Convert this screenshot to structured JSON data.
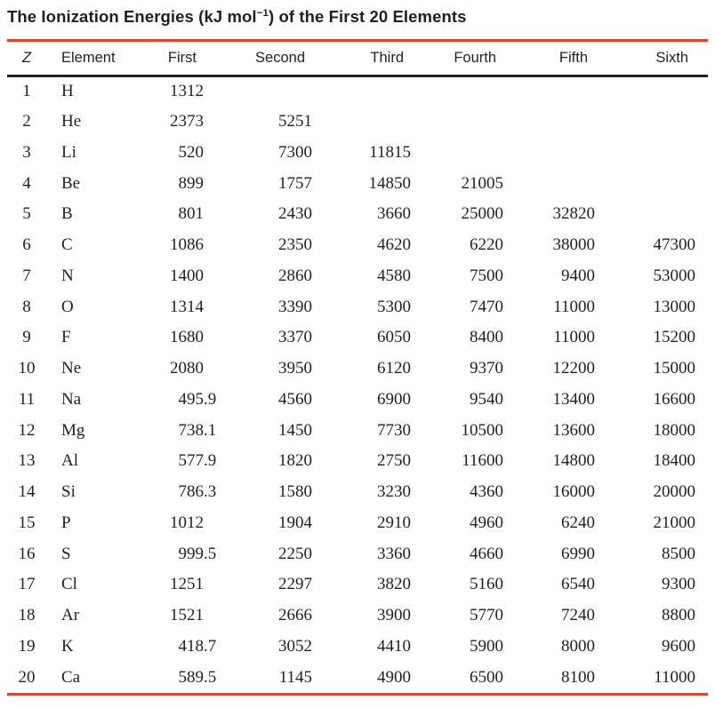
{
  "title": {
    "pre": "The Ionization Energies (kJ mol",
    "sup": "−1",
    "post": ") of the First 20 Elements"
  },
  "colors": {
    "accent_rule": "#d6492f",
    "header_rule": "#231f20",
    "text": "#231f20"
  },
  "table": {
    "columns": [
      "Z",
      "Element",
      "First",
      "Second",
      "Third",
      "Fourth",
      "Fifth",
      "Sixth"
    ],
    "rows": [
      [
        "1",
        "H",
        "1312",
        "",
        "",
        "",
        "",
        ""
      ],
      [
        "2",
        "He",
        "2373",
        "5251",
        "",
        "",
        "",
        ""
      ],
      [
        "3",
        "Li",
        "520",
        "7300",
        "11815",
        "",
        "",
        ""
      ],
      [
        "4",
        "Be",
        "899",
        "1757",
        "14850",
        "21005",
        "",
        ""
      ],
      [
        "5",
        "B",
        "801",
        "2430",
        "3660",
        "25000",
        "32820",
        ""
      ],
      [
        "6",
        "C",
        "1086",
        "2350",
        "4620",
        "6220",
        "38000",
        "47300"
      ],
      [
        "7",
        "N",
        "1400",
        "2860",
        "4580",
        "7500",
        "9400",
        "53000"
      ],
      [
        "8",
        "O",
        "1314",
        "3390",
        "5300",
        "7470",
        "11000",
        "13000"
      ],
      [
        "9",
        "F",
        "1680",
        "3370",
        "6050",
        "8400",
        "11000",
        "15200"
      ],
      [
        "10",
        "Ne",
        "2080",
        "3950",
        "6120",
        "9370",
        "12200",
        "15000"
      ],
      [
        "11",
        "Na",
        "495.9",
        "4560",
        "6900",
        "9540",
        "13400",
        "16600"
      ],
      [
        "12",
        "Mg",
        "738.1",
        "1450",
        "7730",
        "10500",
        "13600",
        "18000"
      ],
      [
        "13",
        "Al",
        "577.9",
        "1820",
        "2750",
        "11600",
        "14800",
        "18400"
      ],
      [
        "14",
        "Si",
        "786.3",
        "1580",
        "3230",
        "4360",
        "16000",
        "20000"
      ],
      [
        "15",
        "P",
        "1012",
        "1904",
        "2910",
        "4960",
        "6240",
        "21000"
      ],
      [
        "16",
        "S",
        "999.5",
        "2250",
        "3360",
        "4660",
        "6990",
        "8500"
      ],
      [
        "17",
        "Cl",
        "1251",
        "2297",
        "3820",
        "5160",
        "6540",
        "9300"
      ],
      [
        "18",
        "Ar",
        "1521",
        "2666",
        "3900",
        "5770",
        "7240",
        "8800"
      ],
      [
        "19",
        "K",
        "418.7",
        "3052",
        "4410",
        "5900",
        "8000",
        "9600"
      ],
      [
        "20",
        "Ca",
        "589.5",
        "1145",
        "4900",
        "6500",
        "8100",
        "11000"
      ]
    ]
  }
}
